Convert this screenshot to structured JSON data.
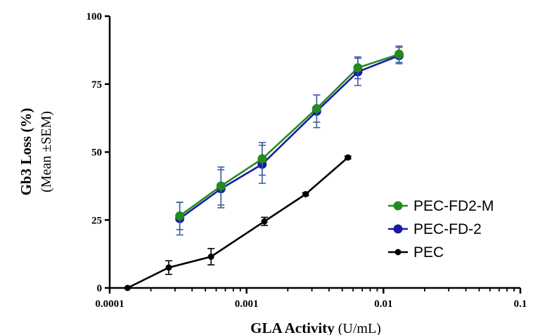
{
  "chart_data": {
    "type": "line",
    "xscale": "log",
    "xlim": [
      0.0001,
      0.1
    ],
    "ylim": [
      0,
      100
    ],
    "xlabel": {
      "bold": "GLA Activity",
      "unit": " (U/mL)"
    },
    "ylabel": {
      "bold": "Gb3 Loss (%)",
      "sub": "(Mean ±SEM)"
    },
    "x_ticks": [
      {
        "value": 0.0001,
        "label": "0.0001"
      },
      {
        "value": 0.001,
        "label": "0.001"
      },
      {
        "value": 0.01,
        "label": "0.01"
      },
      {
        "value": 0.1,
        "label": "0.1"
      }
    ],
    "y_ticks": [
      {
        "value": 0,
        "label": "0"
      },
      {
        "value": 25,
        "label": "25"
      },
      {
        "value": 50,
        "label": "50"
      },
      {
        "value": 75,
        "label": "75"
      },
      {
        "value": 100,
        "label": "100"
      }
    ],
    "legend_position": "right",
    "series": [
      {
        "name": "PEC-FD2-M",
        "color": "#228b22",
        "marker": "circle",
        "x": [
          0.000325,
          0.00065,
          0.0013,
          0.00325,
          0.0065,
          0.013
        ],
        "y": [
          26.5,
          37.5,
          47.5,
          66,
          81,
          86
        ],
        "err": [
          5,
          7,
          6,
          5,
          4,
          3
        ]
      },
      {
        "name": "PEC-FD-2",
        "color": "#1a1aa6",
        "marker": "circle",
        "x": [
          0.000325,
          0.00065,
          0.0013,
          0.00325,
          0.0065,
          0.013
        ],
        "y": [
          25.5,
          36.5,
          45.5,
          65,
          79.5,
          85.5
        ],
        "err": [
          6,
          7,
          7,
          6,
          5,
          3
        ]
      },
      {
        "name": "PEC",
        "color": "#000000",
        "marker": "circle",
        "x": [
          0.000135,
          0.00027,
          0.00055,
          0.00135,
          0.0027,
          0.0055
        ],
        "y": [
          0,
          7.5,
          11.5,
          24.5,
          34.5,
          48
        ],
        "err": [
          0,
          2.5,
          3,
          1.5,
          0.5,
          0.5
        ]
      }
    ],
    "legend_order": [
      0,
      1,
      2
    ]
  }
}
